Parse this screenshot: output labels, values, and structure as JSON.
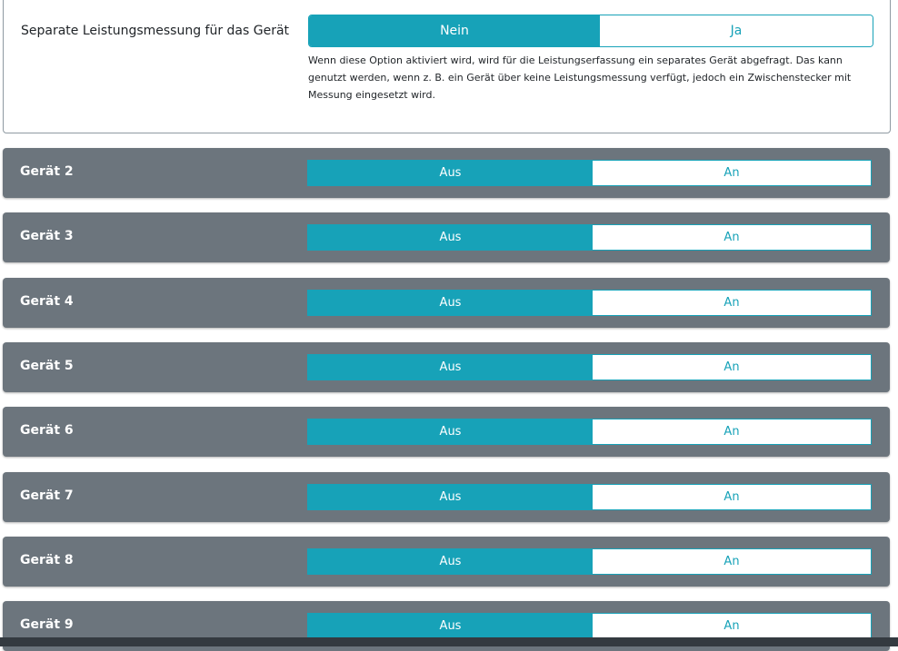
{
  "separate": {
    "label": "Separate Leistungsmessung für das Gerät",
    "options": [
      "Nein",
      "Ja"
    ],
    "selected": "Nein",
    "help": "Wenn diese Option aktiviert wird, wird für die Leistungserfassung ein separates Gerät abgefragt. Das kann genutzt werden, wenn z. B. ein Gerät über keine Leistungsmessung verfügt, jedoch ein Zwischenstecker mit Messung eingesetzt wird."
  },
  "devices": [
    {
      "name": "Gerät 2",
      "off": "Aus",
      "on": "An",
      "state": "Aus"
    },
    {
      "name": "Gerät 3",
      "off": "Aus",
      "on": "An",
      "state": "Aus"
    },
    {
      "name": "Gerät 4",
      "off": "Aus",
      "on": "An",
      "state": "Aus"
    },
    {
      "name": "Gerät 5",
      "off": "Aus",
      "on": "An",
      "state": "Aus"
    },
    {
      "name": "Gerät 6",
      "off": "Aus",
      "on": "An",
      "state": "Aus"
    },
    {
      "name": "Gerät 7",
      "off": "Aus",
      "on": "An",
      "state": "Aus"
    },
    {
      "name": "Gerät 8",
      "off": "Aus",
      "on": "An",
      "state": "Aus"
    },
    {
      "name": "Gerät 9",
      "off": "Aus",
      "on": "An",
      "state": "Aus"
    }
  ],
  "colors": {
    "accent": "#17a2b8",
    "panel": "#6c757d",
    "footer": "#343a40"
  }
}
